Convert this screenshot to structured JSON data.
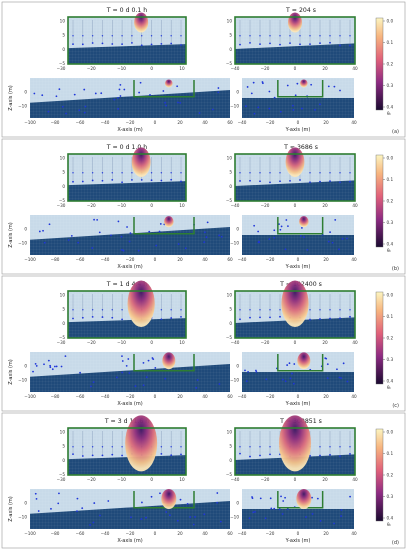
{
  "figure": {
    "panels": [
      {
        "label": "(a)",
        "top_left_title": "T = 0 d  0.1 h",
        "top_right_title": "T = 204 s",
        "plume": 0.25,
        "colorbar_ticks": [
          "0.0",
          "0.1",
          "0.2",
          "0.3",
          "0.4"
        ],
        "colorbar_label": "θₙ"
      },
      {
        "label": "(b)",
        "top_left_title": "T = 0 d  1.0 h",
        "top_right_title": "T = 3686 s",
        "plume": 0.45,
        "colorbar_ticks": [
          "0.0",
          "0.1",
          "0.2",
          "0.3",
          "0.4"
        ],
        "colorbar_label": "θₙ"
      },
      {
        "label": "(c)",
        "top_left_title": "T = 1 d  4.4 h",
        "top_right_title": "T = 102400 s",
        "plume": 0.8,
        "colorbar_ticks": [
          "0.0",
          "0.1",
          "0.2",
          "0.3",
          "0.4"
        ],
        "colorbar_label": "θₙ"
      },
      {
        "label": "(d)",
        "top_left_title": "T = 3 d 11.6 h",
        "top_right_title": "T = 300851 s",
        "plume": 1.0,
        "colorbar_ticks": [
          "0.0",
          "0.1",
          "0.2",
          "0.3",
          "0.4"
        ],
        "colorbar_label": "θₙ"
      }
    ],
    "axes": {
      "top_left_xticks": [
        "−30",
        "−20",
        "−10",
        "0",
        "10"
      ],
      "top_yticks": [
        "10",
        "5",
        "0",
        "−5"
      ],
      "top_right_xticks": [
        "−40",
        "−20",
        "0",
        "20",
        "40"
      ],
      "bottom_left_xticks": [
        "−100",
        "−80",
        "−60",
        "−40",
        "−20",
        "0",
        "20",
        "40",
        "60"
      ],
      "bottom_right_xticks": [
        "−40",
        "−20",
        "0",
        "20",
        "40"
      ],
      "bottom_yticks": [
        "0",
        "−10"
      ],
      "bottom_left_xlabel": "X-axis (m)",
      "bottom_right_xlabel": "Y-axis (m)",
      "ylabel": "Z-axis (m)"
    },
    "colors": {
      "water": "#c8dae9",
      "sediment": "#1f4a7a",
      "frame": "#2e7d32",
      "dots": "#1f36d9",
      "plume_outer": "#f5c38a",
      "plume_mid": "#d9687a",
      "plume_core": "#3a1460"
    }
  },
  "chart_data": {
    "type": "heatmap",
    "panels": [
      {
        "label": "(a)",
        "titles": [
          "T = 0 d  0.1 h",
          "T = 204 s"
        ]
      },
      {
        "label": "(b)",
        "titles": [
          "T = 0 d  1.0 h",
          "T = 3686 s"
        ]
      },
      {
        "label": "(c)",
        "titles": [
          "T = 1 d  4.4 h",
          "T = 102400 s"
        ]
      },
      {
        "label": "(d)",
        "titles": [
          "T = 3 d 11.6 h",
          "T = 300851 s"
        ]
      }
    ],
    "xlabel_left": "X-axis (m)",
    "xlabel_right": "Y-axis (m)",
    "ylabel": "Z-axis (m)",
    "colorbar": {
      "min": 0.0,
      "max": 0.4,
      "ticks": [
        0.0,
        0.1,
        0.2,
        0.3,
        0.4
      ],
      "label": "θₙ"
    },
    "top_xlim_left": [
      -30,
      15
    ],
    "top_xlim_right": [
      -40,
      40
    ],
    "bottom_xlim_left": [
      -100,
      60
    ],
    "bottom_xlim_right": [
      -40,
      40
    ],
    "top_ylim": [
      -5,
      12
    ],
    "bottom_ylim": [
      -15,
      5
    ]
  }
}
